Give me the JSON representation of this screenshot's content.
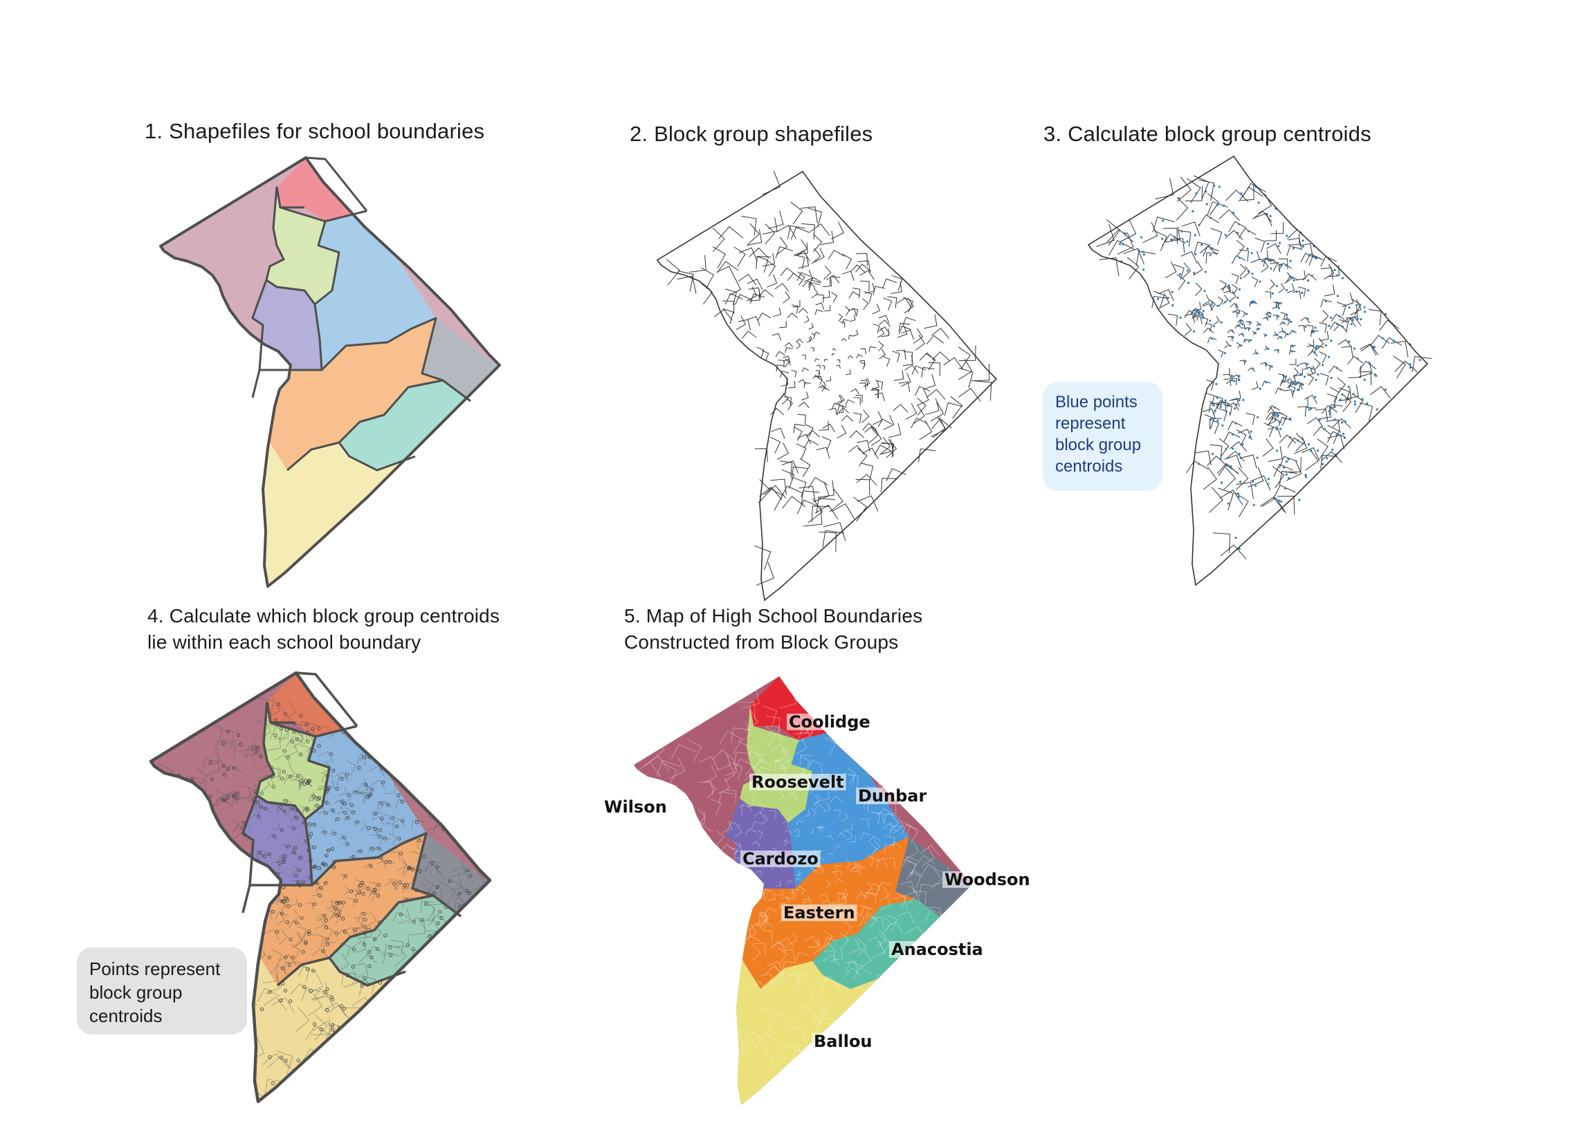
{
  "panels": [
    {
      "title": "1. Shapefiles for school boundaries"
    },
    {
      "title": "2. Block group shapefiles"
    },
    {
      "title": "3. Calculate block group centroids"
    },
    {
      "title_line1": "4. Calculate which block group centroids",
      "title_line2": "lie within each school boundary"
    },
    {
      "title_line1": "5. Map of High School Boundaries",
      "title_line2": "Constructed from Block Groups"
    }
  ],
  "notes": {
    "blue_points": [
      "Blue points",
      "represent",
      "block group",
      "centroids"
    ],
    "points": [
      "Points represent",
      "block group",
      "centroids"
    ]
  },
  "schools": [
    {
      "name": "Wilson",
      "color_p1": "#d4aebb",
      "color_p4": "#b47585",
      "color_p5": "#ad5d72"
    },
    {
      "name": "Coolidge",
      "color_p1": "#f0919a",
      "color_p4": "#e07a5c",
      "color_p5": "#e32631"
    },
    {
      "name": "Roosevelt",
      "color_p1": "#d7e8b5",
      "color_p4": "#c3dc98",
      "color_p5": "#b8d77a"
    },
    {
      "name": "Dunbar",
      "color_p1": "#a8cde8",
      "color_p4": "#8fb6dc",
      "color_p5": "#4a97da"
    },
    {
      "name": "Cardozo",
      "color_p1": "#b5b0d9",
      "color_p4": "#9288c4",
      "color_p5": "#7668b4"
    },
    {
      "name": "Eastern",
      "color_p1": "#f7c08e",
      "color_p4": "#efab72",
      "color_p5": "#f07f24"
    },
    {
      "name": "Woodson",
      "color_p1": "#b4b8c0",
      "color_p4": "#8c8f98",
      "color_p5": "#6e7a88"
    },
    {
      "name": "Anacostia",
      "color_p1": "#a9dfd2",
      "color_p4": "#9ccdb6",
      "color_p5": "#5bbea4"
    },
    {
      "name": "Ballou",
      "color_p1": "#f5ecb5",
      "color_p4": "#efdc9a",
      "color_p5": "#ece07a"
    }
  ],
  "colors": {
    "outline": "#4f4f4f",
    "centroid_blue": "#2a7fc0"
  }
}
